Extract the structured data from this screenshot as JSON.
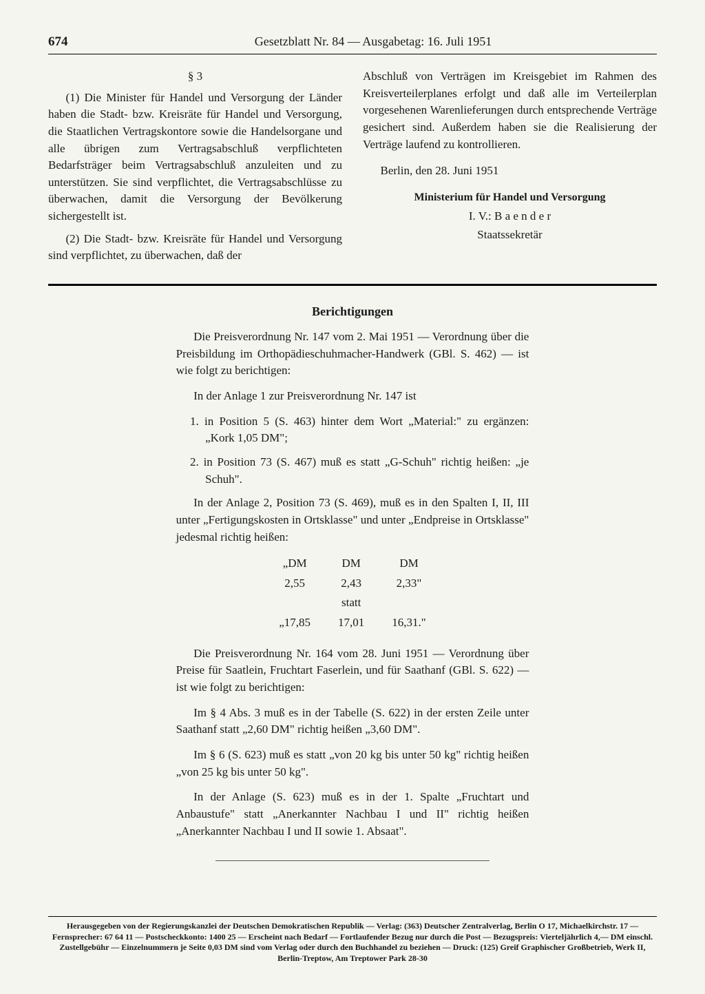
{
  "header": {
    "page_number": "674",
    "title": "Gesetzblatt Nr. 84 — Ausgabetag: 16. Juli 1951"
  },
  "left_col": {
    "section": "§ 3",
    "para1": "(1) Die Minister für Handel und Versorgung der Länder haben die Stadt- bzw. Kreisräte für Handel und Versorgung, die Staatlichen Vertragskontore sowie die Handelsorgane und alle übrigen zum Vertragsabschluß verpflichteten Bedarfsträger beim Vertragsabschluß anzuleiten und zu unterstützen. Sie sind verpflichtet, die Vertragsabschlüsse zu überwachen, damit die Versorgung der Bevölkerung sichergestellt ist.",
    "para2": "(2) Die Stadt- bzw. Kreisräte für Handel und Versorgung sind verpflichtet, zu überwachen, daß der"
  },
  "right_col": {
    "cont": "Abschluß von Verträgen im Kreisgebiet im Rahmen des Kreisverteilerplanes erfolgt und daß alle im Verteilerplan vorgesehenen Warenlieferungen durch entsprechende Verträge gesichert sind. Außerdem haben sie die Realisierung der Verträge laufend zu kontrollieren.",
    "date": "Berlin, den 28. Juni 1951",
    "ministry": "Ministerium für Handel und Versorgung",
    "signatory": "I. V.: B a e n d e r",
    "role": "Staatssekretär"
  },
  "corrections": {
    "title": "Berichtigungen",
    "intro1": "Die Preisverordnung Nr. 147 vom 2. Mai 1951 — Verordnung über die Preisbildung im Orthopädieschuhmacher-Handwerk (GBl. S. 462) — ist wie folgt zu berichtigen:",
    "anlage1_lead": "In der Anlage 1 zur Preisverordnung Nr. 147 ist",
    "item1": "1. in Position 5 (S. 463) hinter dem Wort „Material:\" zu ergänzen: „Kork 1,05 DM\";",
    "item2": "2. in Position 73 (S. 467) muß es statt „G-Schuh\" richtig heißen: „je Schuh\".",
    "anlage2": "In der Anlage 2, Position 73 (S. 469), muß es in den Spalten I, II, III unter „Fertigungskosten in Ortsklasse\" und unter „Endpreise in Ortsklasse\" jedesmal richtig heißen:",
    "table": {
      "hdr": [
        "„DM",
        "DM",
        "DM"
      ],
      "row1": [
        "2,55",
        "2,43",
        "2,33\""
      ],
      "statt": "statt",
      "row2": [
        "„17,85",
        "17,01",
        "16,31.\""
      ]
    },
    "intro2": "Die Preisverordnung Nr. 164 vom 28. Juni 1951 — Verordnung über Preise für Saatlein, Fruchtart Faserlein, und für Saathanf (GBl. S. 622) — ist wie folgt zu berichtigen:",
    "p4": "Im § 4 Abs. 3 muß es in der Tabelle (S. 622) in der ersten Zeile unter Saathanf statt „2,60 DM\" richtig heißen „3,60 DM\".",
    "p6": "Im § 6 (S. 623) muß es statt „von 20 kg bis unter 50 kg\" richtig heißen „von 25 kg bis unter 50 kg\".",
    "anlage_p": "In der Anlage (S. 623) muß es in der 1. Spalte „Fruchtart und Anbaustufe\" statt „Anerkannter Nachbau I und II\" richtig heißen „Anerkannter Nachbau I und II sowie 1. Absaat\"."
  },
  "imprint": "Herausgegeben von der Regierungskanzlei der Deutschen Demokratischen Republik — Verlag: (363) Deutscher Zentralverlag, Berlin O 17, Michaelkirchstr. 17 — Fernsprecher: 67 64 11 — Postscheckkonto: 1400 25 — Erscheint nach Bedarf — Fortlaufender Bezug nur durch die Post — Bezugspreis: Vierteljährlich 4,— DM einschl. Zustellgebühr — Einzelnummern je Seite 0,03 DM sind vom Verlag oder durch den Buchhandel zu beziehen — Druck: (125) Greif Graphischer Großbetrieb, Werk II, Berlin-Treptow, Am Treptower Park 28-30"
}
